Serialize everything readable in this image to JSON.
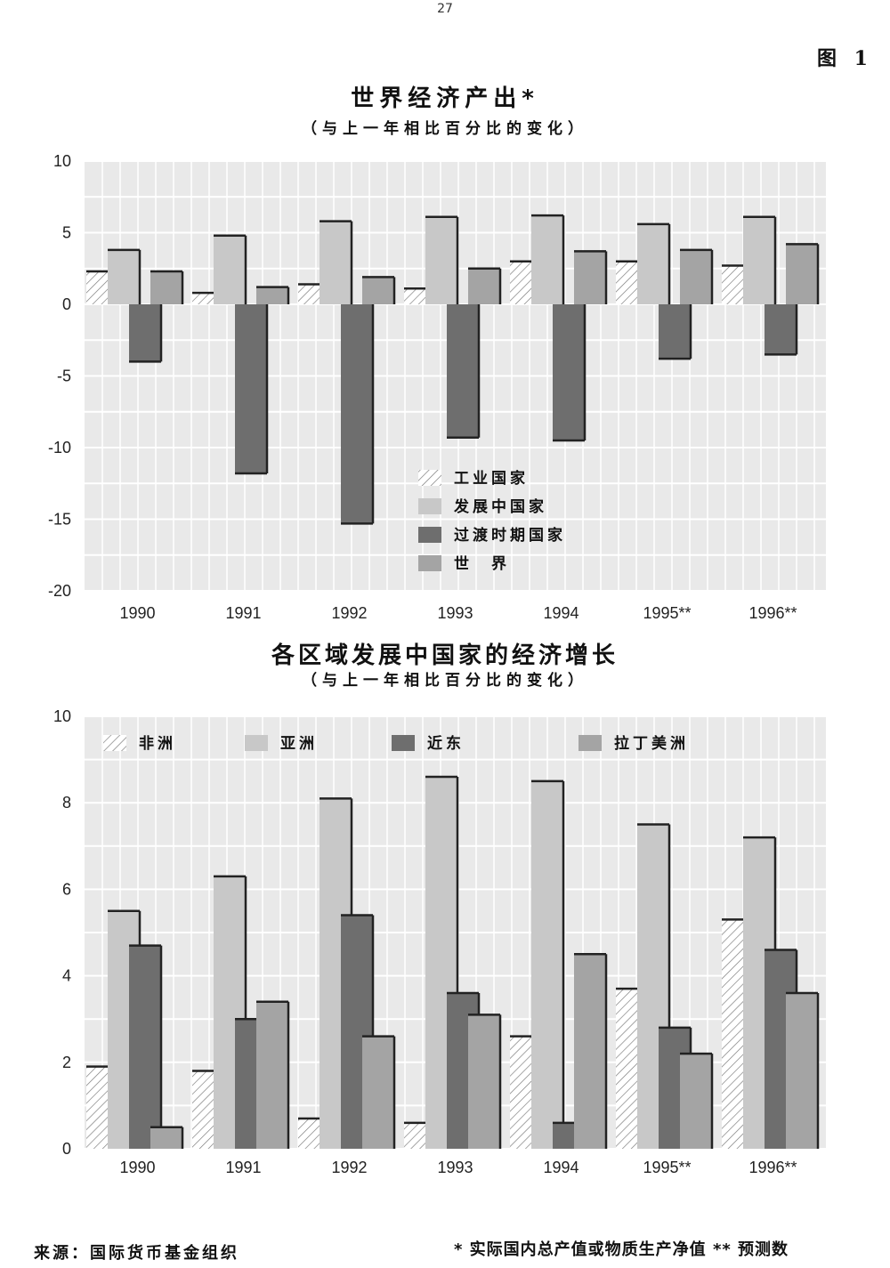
{
  "page": {
    "number": "27",
    "figure_label": "图 1",
    "footer_source": "来源：国际货币基金组织",
    "footer_notes": "* 实际国内总产值或物质生产净值  ** 预测数"
  },
  "colors": {
    "industrial": "#ffffff",
    "developing": "#c8c8c8",
    "transition": "#6e6e6e",
    "world": "#a4a4a4",
    "plot_bg": "#e9e9e9",
    "grid": "#ffffff"
  },
  "chart_data": [
    {
      "type": "bar",
      "title": "世界经济产出*",
      "subtitle": "（与上一年相比百分比的变化）",
      "categories": [
        "1990",
        "1991",
        "1992",
        "1993",
        "1994",
        "1995**",
        "1996**"
      ],
      "ylim": [
        -20,
        10
      ],
      "yticks": [
        "10",
        "5",
        "0",
        "-5",
        "-10",
        "-15",
        "-20"
      ],
      "xlabel": "",
      "ylabel": "",
      "legend_position": "center-bottom",
      "series": [
        {
          "name": "工业国家",
          "pattern": "hatch",
          "values": [
            2.3,
            0.8,
            1.4,
            1.1,
            3.0,
            3.0,
            2.7
          ]
        },
        {
          "name": "发展中国家",
          "values": [
            3.8,
            4.8,
            5.8,
            6.1,
            6.2,
            5.6,
            6.1
          ]
        },
        {
          "name": "过渡时期国家",
          "values": [
            -4.0,
            -11.8,
            -15.3,
            -9.3,
            -9.5,
            -3.8,
            -3.5
          ]
        },
        {
          "name": "世　界",
          "values": [
            2.3,
            1.2,
            1.9,
            2.5,
            3.7,
            3.8,
            4.2
          ]
        }
      ]
    },
    {
      "type": "bar",
      "title": "各区域发展中国家的经济增长",
      "subtitle": "（与上一年相比百分比的变化）",
      "categories": [
        "1990",
        "1991",
        "1992",
        "1993",
        "1994",
        "1995**",
        "1996**"
      ],
      "ylim": [
        0,
        10
      ],
      "yticks": [
        "10",
        "8",
        "6",
        "4",
        "2",
        "0"
      ],
      "xlabel": "",
      "ylabel": "",
      "legend_position": "top",
      "series": [
        {
          "name": "非洲",
          "pattern": "hatch",
          "values": [
            1.9,
            1.8,
            0.7,
            0.6,
            2.6,
            3.7,
            5.3
          ]
        },
        {
          "name": "亚洲",
          "values": [
            5.5,
            6.3,
            8.1,
            8.6,
            8.5,
            7.5,
            7.2
          ]
        },
        {
          "name": "近东",
          "values": [
            4.7,
            3.0,
            5.4,
            3.6,
            0.6,
            2.8,
            4.6
          ]
        },
        {
          "name": "拉丁美洲",
          "values": [
            0.5,
            3.4,
            2.6,
            3.1,
            4.5,
            2.2,
            3.6
          ]
        }
      ]
    }
  ]
}
